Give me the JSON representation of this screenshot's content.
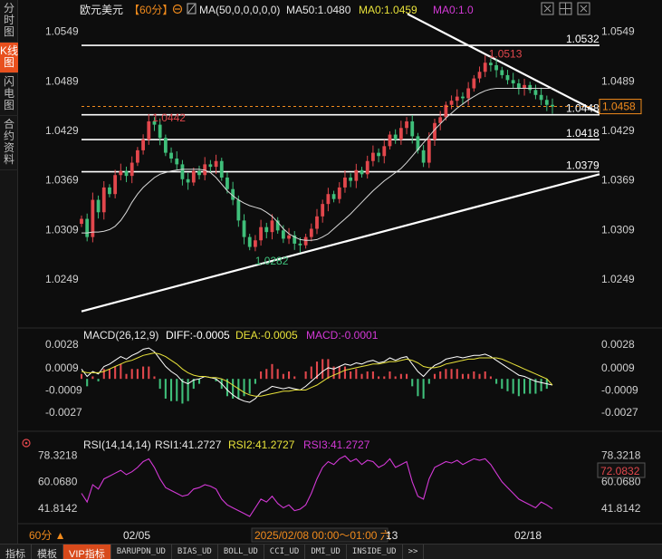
{
  "sidebar": {
    "items": [
      {
        "label": "分时图",
        "active": false
      },
      {
        "label": "K线图",
        "active": true
      },
      {
        "label": "闪电图",
        "active": false
      },
      {
        "label": "合约资料",
        "active": false
      }
    ]
  },
  "header": {
    "symbol": "欧元美元",
    "period": "【60分】",
    "ma_label": "MA(50,0,0,0,0,0)",
    "ma50": "MA50:1.0480",
    "ma0a": "MA0:1.0459",
    "ma0b": "MA0:1.0"
  },
  "price_axis": {
    "ticks": [
      "1.0549",
      "1.0489",
      "1.0429",
      "1.0369",
      "1.0309",
      "1.0249"
    ],
    "current_price": "1.0458"
  },
  "annotations": {
    "high": "1.0513",
    "left_high": "1.0442",
    "low": "1.0282",
    "level_1": "1.0532",
    "level_2": "1.0448",
    "level_3": "1.0418",
    "level_4": "1.0379"
  },
  "macd": {
    "label": "MACD(26,12,9)",
    "diff": "DIFF:-0.0005",
    "dea": "DEA:-0.0005",
    "macd": "MACD:-0.0001",
    "ticks": [
      "0.0028",
      "0.0009",
      "-0.0009",
      "-0.0027"
    ]
  },
  "rsi": {
    "label": "RSI(14,14,14)",
    "rsi1": "RSI1:41.2727",
    "rsi2": "RSI2:41.2727",
    "rsi3": "RSI3:41.2727",
    "ticks": [
      "78.3218",
      "60.0680",
      "41.8142"
    ],
    "current": "72.0832"
  },
  "time_axis": {
    "period_button": "60分 ▲",
    "labels": [
      "02/05",
      "13",
      "02/18"
    ],
    "cursor_time": "2025/02/08 00:00～01:00 六"
  },
  "bottom_tabs": [
    "指标",
    "模板",
    "VIP指标",
    "BARUPDN_UD",
    "BIAS_UD",
    "BOLL_UD",
    "CCI_UD",
    "DMI_UD",
    "INSIDE_UD",
    ">>"
  ],
  "colors": {
    "up": "#e2474c",
    "down": "#3fbf7a",
    "ma50": "#d8d8d8",
    "diff": "#ffffff",
    "dea": "#e8e23a",
    "rsi": "#d339d6",
    "accent": "#f08a1c"
  },
  "chart_data": {
    "type": "candlestick",
    "title": "欧元美元 60分",
    "ylim": [
      1.0225,
      1.0565
    ],
    "price_path": [
      1.0322,
      1.03,
      1.0345,
      1.033,
      1.036,
      1.0352,
      1.0375,
      1.038,
      1.0374,
      1.039,
      1.0405,
      1.0418,
      1.044,
      1.0436,
      1.042,
      1.0402,
      1.0395,
      1.0388,
      1.037,
      1.0366,
      1.038,
      1.0375,
      1.0388,
      1.0385,
      1.0392,
      1.0372,
      1.0358,
      1.0345,
      1.032,
      1.03,
      1.0288,
      1.0296,
      1.0312,
      1.0306,
      1.032,
      1.0308,
      1.0298,
      1.0302,
      1.0292,
      1.029,
      1.03,
      1.031,
      1.0325,
      1.034,
      1.0352,
      1.0346,
      1.036,
      1.0372,
      1.0368,
      1.0381,
      1.0376,
      1.0392,
      1.0402,
      1.0398,
      1.041,
      1.0424,
      1.0418,
      1.0432,
      1.044,
      1.0422,
      1.0405,
      1.039,
      1.0418,
      1.0438,
      1.0445,
      1.046,
      1.0465,
      1.047,
      1.0468,
      1.048,
      1.0492,
      1.05,
      1.0511,
      1.0508,
      1.0502,
      1.0496,
      1.049,
      1.0486,
      1.048,
      1.0484,
      1.0478,
      1.0472,
      1.0466,
      1.046,
      1.0458
    ],
    "ma50_path": [
      1.0305,
      1.0305,
      1.0306,
      1.0306,
      1.0307,
      1.0309,
      1.0313,
      1.032,
      1.033,
      1.0342,
      1.0352,
      1.036,
      1.0366,
      1.0372,
      1.0376,
      1.0378,
      1.038,
      1.0381,
      1.0382,
      1.0382,
      1.0382,
      1.0382,
      1.0381,
      1.0378,
      1.0372,
      1.0364,
      1.0356,
      1.035,
      1.0345,
      1.0341,
      1.0338,
      1.0336,
      1.0334,
      1.033,
      1.0325,
      1.0318,
      1.031,
      1.0304,
      1.03,
      1.0297,
      1.0296,
      1.0296,
      1.0297,
      1.03,
      1.0304,
      1.031,
      1.0316,
      1.0322,
      1.0328,
      1.0335,
      1.0342,
      1.0349,
      1.0356,
      1.0362,
      1.0368,
      1.0373,
      1.0378,
      1.0383,
      1.039,
      1.0398,
      1.0406,
      1.0414,
      1.0422,
      1.043,
      1.0437,
      1.0444,
      1.045,
      1.0456,
      1.0461,
      1.0466,
      1.047,
      1.0474,
      1.0477,
      1.0479,
      1.048,
      1.048,
      1.048,
      1.048,
      1.048,
      1.048,
      1.048,
      1.048,
      1.048,
      1.048,
      1.048
    ],
    "diff_path": [
      0.0008,
      0.0002,
      0.0006,
      0.0004,
      0.001,
      0.0012,
      0.0015,
      0.0018,
      0.0016,
      0.0019,
      0.0021,
      0.0024,
      0.0025,
      0.0022,
      0.0016,
      0.001,
      0.0006,
      0.0003,
      -0.0002,
      -0.0004,
      -0.0001,
      0.0,
      0.0002,
      0.0001,
      0.0,
      -0.0004,
      -0.0009,
      -0.0013,
      -0.0016,
      -0.0018,
      -0.0019,
      -0.0016,
      -0.0011,
      -0.0009,
      -0.0006,
      -0.0007,
      -0.0008,
      -0.0007,
      -0.0008,
      -0.0009,
      -0.0006,
      -0.0002,
      0.0002,
      0.0006,
      0.0009,
      0.0008,
      0.001,
      0.0012,
      0.0011,
      0.0013,
      0.0012,
      0.0014,
      0.0015,
      0.0013,
      0.0014,
      0.0017,
      0.0015,
      0.0017,
      0.0018,
      0.0012,
      0.0006,
      0.0002,
      0.0007,
      0.0011,
      0.0013,
      0.0016,
      0.0017,
      0.0018,
      0.0017,
      0.0018,
      0.0019,
      0.0019,
      0.002,
      0.0018,
      0.0015,
      0.0012,
      0.0009,
      0.0006,
      0.0003,
      0.0002,
      0.0,
      -0.0002,
      -0.0003,
      -0.0004,
      -0.0005
    ],
    "dea_path": [
      0.0006,
      0.0005,
      0.0005,
      0.0005,
      0.0006,
      0.0008,
      0.001,
      0.0012,
      0.0014,
      0.0015,
      0.0017,
      0.0019,
      0.002,
      0.0021,
      0.002,
      0.0018,
      0.0015,
      0.0012,
      0.0008,
      0.0005,
      0.0003,
      0.0002,
      0.0002,
      0.0001,
      0.0001,
      0.0,
      -0.0002,
      -0.0005,
      -0.0008,
      -0.0011,
      -0.0013,
      -0.0014,
      -0.0014,
      -0.0013,
      -0.0012,
      -0.0011,
      -0.001,
      -0.001,
      -0.0009,
      -0.0009,
      -0.0009,
      -0.0007,
      -0.0005,
      -0.0002,
      0.0001,
      0.0003,
      0.0005,
      0.0007,
      0.0008,
      0.0009,
      0.001,
      0.0011,
      0.0012,
      0.0012,
      0.0013,
      0.0014,
      0.0014,
      0.0015,
      0.0016,
      0.0015,
      0.0013,
      0.001,
      0.0009,
      0.0009,
      0.001,
      0.0012,
      0.0013,
      0.0014,
      0.0015,
      0.0016,
      0.0016,
      0.0017,
      0.0017,
      0.0017,
      0.0017,
      0.0016,
      0.0014,
      0.0012,
      0.001,
      0.0008,
      0.0006,
      0.0004,
      0.0002,
      0.0,
      -0.0005
    ],
    "rsi_path": [
      52,
      46,
      58,
      55,
      62,
      64,
      66,
      68,
      65,
      67,
      70,
      74,
      76,
      70,
      62,
      56,
      54,
      52,
      50,
      51,
      55,
      56,
      58,
      57,
      55,
      48,
      44,
      42,
      40,
      38,
      36,
      42,
      48,
      46,
      50,
      45,
      42,
      44,
      40,
      41,
      44,
      52,
      62,
      70,
      74,
      72,
      76,
      78,
      74,
      76,
      72,
      75,
      74,
      70,
      72,
      76,
      70,
      72,
      74,
      60,
      50,
      48,
      62,
      70,
      72,
      74,
      73,
      75,
      72,
      74,
      76,
      75,
      76,
      72,
      66,
      60,
      56,
      52,
      48,
      46,
      44,
      42,
      46,
      44,
      41.27
    ],
    "time_labels": [
      "02/05",
      "13",
      "02/18"
    ],
    "legend": [
      "MA50",
      "DIFF",
      "DEA",
      "MACD"
    ]
  }
}
